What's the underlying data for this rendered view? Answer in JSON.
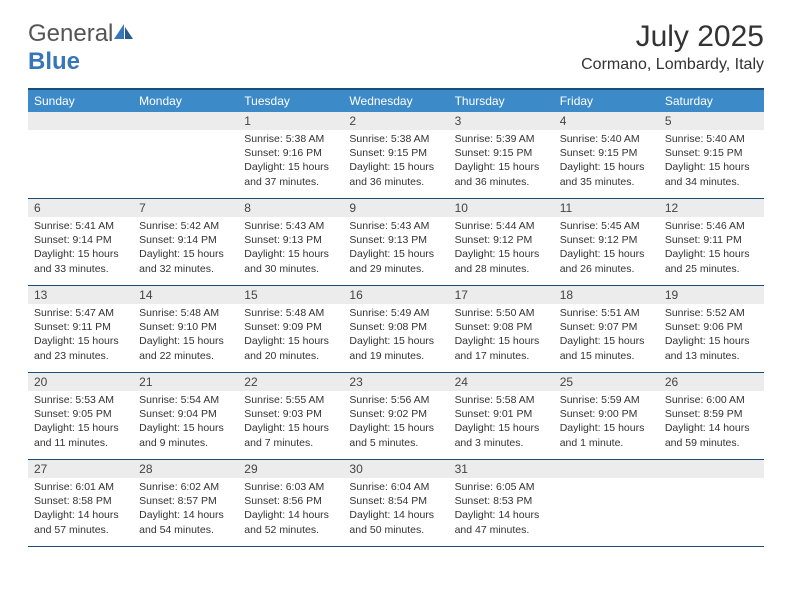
{
  "logo": {
    "text_general": "General",
    "text_blue": "Blue"
  },
  "header": {
    "month_title": "July 2025",
    "location": "Cormano, Lombardy, Italy"
  },
  "colors": {
    "header_bar": "#3d8ac9",
    "border": "#1a4d7a",
    "daynum_bg": "#ececec",
    "logo_blue": "#3577b8"
  },
  "weekdays": [
    "Sunday",
    "Monday",
    "Tuesday",
    "Wednesday",
    "Thursday",
    "Friday",
    "Saturday"
  ],
  "weeks": [
    [
      null,
      null,
      {
        "num": "1",
        "sunrise": "Sunrise: 5:38 AM",
        "sunset": "Sunset: 9:16 PM",
        "daylight": "Daylight: 15 hours and 37 minutes."
      },
      {
        "num": "2",
        "sunrise": "Sunrise: 5:38 AM",
        "sunset": "Sunset: 9:15 PM",
        "daylight": "Daylight: 15 hours and 36 minutes."
      },
      {
        "num": "3",
        "sunrise": "Sunrise: 5:39 AM",
        "sunset": "Sunset: 9:15 PM",
        "daylight": "Daylight: 15 hours and 36 minutes."
      },
      {
        "num": "4",
        "sunrise": "Sunrise: 5:40 AM",
        "sunset": "Sunset: 9:15 PM",
        "daylight": "Daylight: 15 hours and 35 minutes."
      },
      {
        "num": "5",
        "sunrise": "Sunrise: 5:40 AM",
        "sunset": "Sunset: 9:15 PM",
        "daylight": "Daylight: 15 hours and 34 minutes."
      }
    ],
    [
      {
        "num": "6",
        "sunrise": "Sunrise: 5:41 AM",
        "sunset": "Sunset: 9:14 PM",
        "daylight": "Daylight: 15 hours and 33 minutes."
      },
      {
        "num": "7",
        "sunrise": "Sunrise: 5:42 AM",
        "sunset": "Sunset: 9:14 PM",
        "daylight": "Daylight: 15 hours and 32 minutes."
      },
      {
        "num": "8",
        "sunrise": "Sunrise: 5:43 AM",
        "sunset": "Sunset: 9:13 PM",
        "daylight": "Daylight: 15 hours and 30 minutes."
      },
      {
        "num": "9",
        "sunrise": "Sunrise: 5:43 AM",
        "sunset": "Sunset: 9:13 PM",
        "daylight": "Daylight: 15 hours and 29 minutes."
      },
      {
        "num": "10",
        "sunrise": "Sunrise: 5:44 AM",
        "sunset": "Sunset: 9:12 PM",
        "daylight": "Daylight: 15 hours and 28 minutes."
      },
      {
        "num": "11",
        "sunrise": "Sunrise: 5:45 AM",
        "sunset": "Sunset: 9:12 PM",
        "daylight": "Daylight: 15 hours and 26 minutes."
      },
      {
        "num": "12",
        "sunrise": "Sunrise: 5:46 AM",
        "sunset": "Sunset: 9:11 PM",
        "daylight": "Daylight: 15 hours and 25 minutes."
      }
    ],
    [
      {
        "num": "13",
        "sunrise": "Sunrise: 5:47 AM",
        "sunset": "Sunset: 9:11 PM",
        "daylight": "Daylight: 15 hours and 23 minutes."
      },
      {
        "num": "14",
        "sunrise": "Sunrise: 5:48 AM",
        "sunset": "Sunset: 9:10 PM",
        "daylight": "Daylight: 15 hours and 22 minutes."
      },
      {
        "num": "15",
        "sunrise": "Sunrise: 5:48 AM",
        "sunset": "Sunset: 9:09 PM",
        "daylight": "Daylight: 15 hours and 20 minutes."
      },
      {
        "num": "16",
        "sunrise": "Sunrise: 5:49 AM",
        "sunset": "Sunset: 9:08 PM",
        "daylight": "Daylight: 15 hours and 19 minutes."
      },
      {
        "num": "17",
        "sunrise": "Sunrise: 5:50 AM",
        "sunset": "Sunset: 9:08 PM",
        "daylight": "Daylight: 15 hours and 17 minutes."
      },
      {
        "num": "18",
        "sunrise": "Sunrise: 5:51 AM",
        "sunset": "Sunset: 9:07 PM",
        "daylight": "Daylight: 15 hours and 15 minutes."
      },
      {
        "num": "19",
        "sunrise": "Sunrise: 5:52 AM",
        "sunset": "Sunset: 9:06 PM",
        "daylight": "Daylight: 15 hours and 13 minutes."
      }
    ],
    [
      {
        "num": "20",
        "sunrise": "Sunrise: 5:53 AM",
        "sunset": "Sunset: 9:05 PM",
        "daylight": "Daylight: 15 hours and 11 minutes."
      },
      {
        "num": "21",
        "sunrise": "Sunrise: 5:54 AM",
        "sunset": "Sunset: 9:04 PM",
        "daylight": "Daylight: 15 hours and 9 minutes."
      },
      {
        "num": "22",
        "sunrise": "Sunrise: 5:55 AM",
        "sunset": "Sunset: 9:03 PM",
        "daylight": "Daylight: 15 hours and 7 minutes."
      },
      {
        "num": "23",
        "sunrise": "Sunrise: 5:56 AM",
        "sunset": "Sunset: 9:02 PM",
        "daylight": "Daylight: 15 hours and 5 minutes."
      },
      {
        "num": "24",
        "sunrise": "Sunrise: 5:58 AM",
        "sunset": "Sunset: 9:01 PM",
        "daylight": "Daylight: 15 hours and 3 minutes."
      },
      {
        "num": "25",
        "sunrise": "Sunrise: 5:59 AM",
        "sunset": "Sunset: 9:00 PM",
        "daylight": "Daylight: 15 hours and 1 minute."
      },
      {
        "num": "26",
        "sunrise": "Sunrise: 6:00 AM",
        "sunset": "Sunset: 8:59 PM",
        "daylight": "Daylight: 14 hours and 59 minutes."
      }
    ],
    [
      {
        "num": "27",
        "sunrise": "Sunrise: 6:01 AM",
        "sunset": "Sunset: 8:58 PM",
        "daylight": "Daylight: 14 hours and 57 minutes."
      },
      {
        "num": "28",
        "sunrise": "Sunrise: 6:02 AM",
        "sunset": "Sunset: 8:57 PM",
        "daylight": "Daylight: 14 hours and 54 minutes."
      },
      {
        "num": "29",
        "sunrise": "Sunrise: 6:03 AM",
        "sunset": "Sunset: 8:56 PM",
        "daylight": "Daylight: 14 hours and 52 minutes."
      },
      {
        "num": "30",
        "sunrise": "Sunrise: 6:04 AM",
        "sunset": "Sunset: 8:54 PM",
        "daylight": "Daylight: 14 hours and 50 minutes."
      },
      {
        "num": "31",
        "sunrise": "Sunrise: 6:05 AM",
        "sunset": "Sunset: 8:53 PM",
        "daylight": "Daylight: 14 hours and 47 minutes."
      },
      null,
      null
    ]
  ]
}
